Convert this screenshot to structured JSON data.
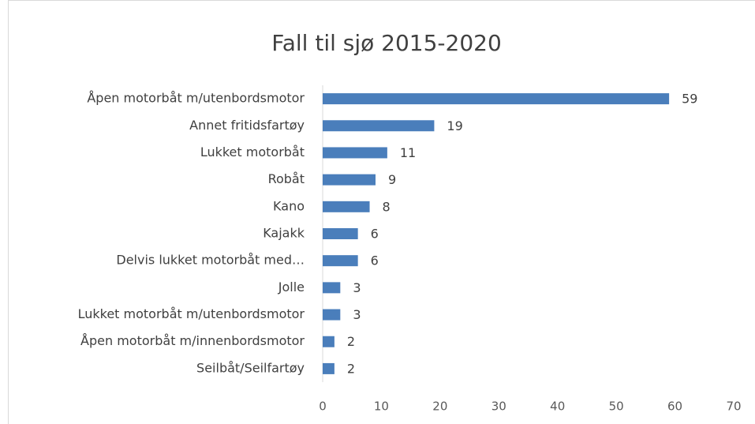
{
  "chart_data": {
    "type": "bar",
    "orientation": "horizontal",
    "title": "Fall til sjø 2015-2020",
    "categories": [
      "Åpen motorbåt m/utenbordsmotor",
      "Annet fritidsfartøy",
      "Lukket motorbåt",
      "Robåt",
      "Kano",
      "Kajakk",
      "Delvis lukket motorbåt med…",
      "Jolle",
      "Lukket motorbåt m/utenbordsmotor",
      "Åpen motorbåt m/innenbordsmotor",
      "Seilbåt/Seilfartøy"
    ],
    "values": [
      59,
      19,
      11,
      9,
      8,
      6,
      6,
      3,
      3,
      2,
      2
    ],
    "color": "#4a7ebb",
    "xlim": [
      0,
      70
    ],
    "xticks": [
      0,
      10,
      20,
      30,
      40,
      50,
      60,
      70
    ],
    "grid": false
  }
}
